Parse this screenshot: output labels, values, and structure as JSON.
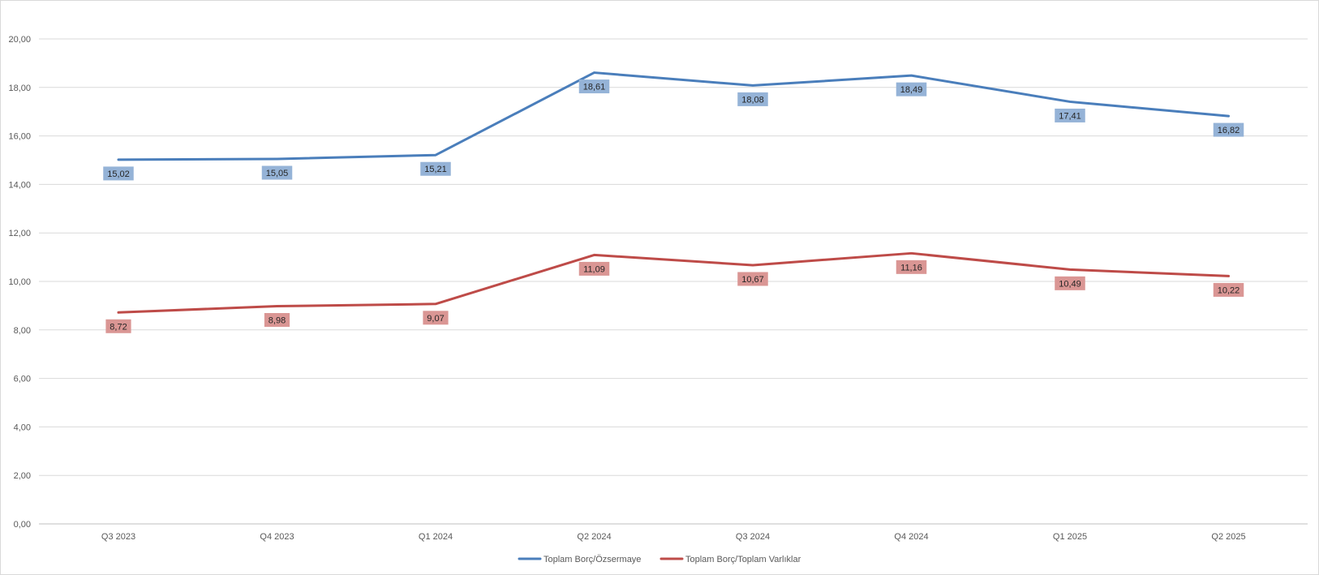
{
  "chart_data": {
    "type": "line",
    "categories": [
      "Q3 2023",
      "Q4 2023",
      "Q1 2024",
      "Q2 2024",
      "Q3 2024",
      "Q4 2024",
      "Q1 2025",
      "Q2 2025"
    ],
    "y_ticks": [
      "0,00",
      "2,00",
      "4,00",
      "6,00",
      "8,00",
      "10,00",
      "12,00",
      "14,00",
      "16,00",
      "18,00",
      "20,00"
    ],
    "ylim": [
      0,
      20
    ],
    "grid": true,
    "legend_position": "bottom",
    "series": [
      {
        "name": "Toplam Borç/Özsermaye",
        "color": "#4a7ebb",
        "label_bg": "#95b3d7",
        "values": [
          15.02,
          15.05,
          15.21,
          18.61,
          18.08,
          18.49,
          17.41,
          16.82
        ],
        "labels": [
          "15,02",
          "15,05",
          "15,21",
          "18,61",
          "18,08",
          "18,49",
          "17,41",
          "16,82"
        ]
      },
      {
        "name": "Toplam Borç/Toplam Varlıklar",
        "color": "#be4b48",
        "label_bg": "#da9694",
        "values": [
          8.72,
          8.98,
          9.07,
          11.09,
          10.67,
          11.16,
          10.49,
          10.22
        ],
        "labels": [
          "8,72",
          "8,98",
          "9,07",
          "11,09",
          "10,67",
          "11,16",
          "10,49",
          "10,22"
        ]
      }
    ]
  }
}
